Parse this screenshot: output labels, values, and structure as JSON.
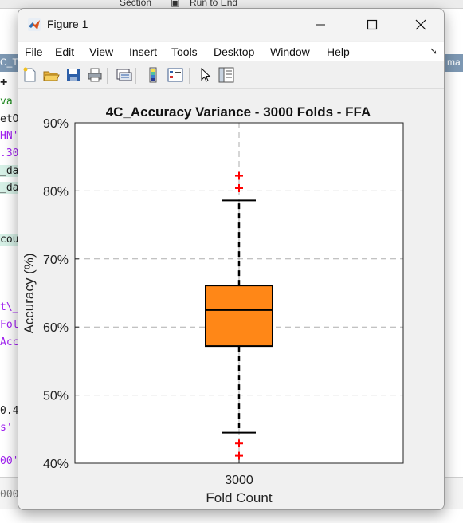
{
  "window": {
    "title": "Figure 1",
    "controls": {
      "minimize": "minimize-icon",
      "maximize": "maximize-icon",
      "close": "close-icon"
    }
  },
  "menu": [
    "File",
    "Edit",
    "View",
    "Insert",
    "Tools",
    "Desktop",
    "Window",
    "Help"
  ],
  "toolbar": {
    "icons": [
      "new-figure-icon",
      "open-file-icon",
      "save-icon",
      "print-icon",
      "link-plot-icon",
      "colorbar-icon",
      "legend-icon",
      "pointer-icon",
      "property-inspector-icon"
    ]
  },
  "background": {
    "top_items": [
      "Section",
      "Run to End"
    ],
    "left_tab": "C_T",
    "right_tab": "ma",
    "code_fragments": [
      "va",
      "etO",
      "HN'",
      ".30",
      "_da",
      "_da",
      "cou",
      "t\\_",
      "Fol",
      "Acc",
      "0.4",
      "s'",
      "00'",
      "000"
    ]
  },
  "chart_data": {
    "type": "box",
    "title": "4C_Accuracy Variance - 3000 Folds - FFA",
    "xlabel": "Fold Count",
    "ylabel": "Accuracy (%)",
    "categories": [
      "3000"
    ],
    "ylim": [
      40,
      90
    ],
    "yticks": [
      40,
      50,
      60,
      70,
      80,
      90
    ],
    "ytick_labels": [
      "40%",
      "50%",
      "60%",
      "70%",
      "80%",
      "90%"
    ],
    "grid": "dashed",
    "box": {
      "category": "3000",
      "whisker_low": 44.5,
      "q1": 57.2,
      "median": 62.5,
      "q3": 66.1,
      "whisker_high": 78.6,
      "outliers": [
        82.2,
        80.4,
        42.9,
        41.1
      ]
    },
    "colors": {
      "box_fill": "#ff8717",
      "outlier": "#ff0000",
      "grid": "#999999"
    }
  }
}
